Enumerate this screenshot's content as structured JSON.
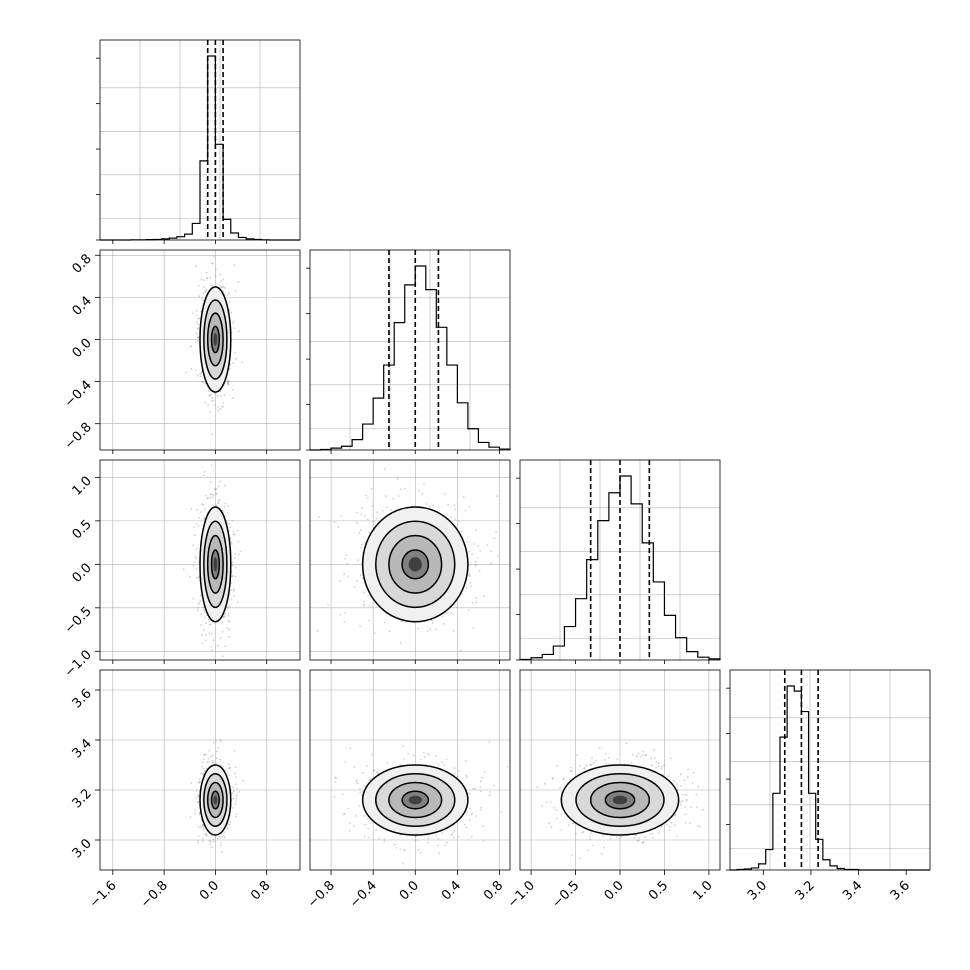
{
  "figure": {
    "type": "corner-plot",
    "color_main": "#000000",
    "color_grid": "#b0b0b0",
    "color_scatter": "#7f7f7f"
  },
  "chart_data": [
    {
      "type": "bar",
      "panel": "histogram-param-1",
      "edges": [
        -1.8,
        -1.68,
        -1.56,
        -1.44,
        -1.32,
        -1.2,
        -1.08,
        -0.96,
        -0.84,
        -0.72,
        -0.6,
        -0.48,
        -0.36,
        -0.24,
        -0.12,
        0,
        0.12,
        0.24,
        0.36,
        0.48,
        0.6,
        0.72,
        0.84,
        0.96,
        1.08,
        1.2,
        1.32
      ],
      "values": [
        0,
        0,
        0,
        0,
        1,
        1,
        2,
        3,
        6,
        10,
        18,
        32,
        90,
        430,
        1000,
        520,
        112,
        38,
        14,
        6,
        3,
        1,
        0,
        0,
        0,
        0
      ],
      "quantiles": [
        -0.12,
        0.0,
        0.12
      ],
      "xlim": [
        -1.8,
        1.32
      ],
      "xticks": [
        "−1.6",
        "−0.8",
        "0.0",
        "0.8"
      ]
    },
    {
      "type": "bar",
      "panel": "histogram-param-2",
      "edges": [
        -1.0,
        -0.9,
        -0.8,
        -0.7,
        -0.6,
        -0.5,
        -0.4,
        -0.3,
        -0.2,
        -0.1,
        0.0,
        0.1,
        0.2,
        0.3,
        0.4,
        0.5,
        0.6,
        0.7,
        0.8,
        0.9
      ],
      "values": [
        0,
        1,
        4,
        8,
        22,
        55,
        110,
        180,
        270,
        350,
        390,
        340,
        260,
        180,
        100,
        45,
        16,
        6,
        2
      ],
      "quantiles": [
        -0.25,
        0.0,
        0.22
      ],
      "yticks": [
        "0.8",
        "0.4",
        "0.0",
        "−0.4",
        "−0.8"
      ],
      "xticks": [
        "−0.8",
        "−0.4",
        "0.0",
        "0.4",
        "0.8"
      ]
    },
    {
      "type": "bar",
      "panel": "histogram-param-3",
      "edges": [
        -1.125,
        -1.0,
        -0.875,
        -0.75,
        -0.625,
        -0.5,
        -0.375,
        -0.25,
        -0.125,
        0.0,
        0.125,
        0.25,
        0.375,
        0.5,
        0.625,
        0.75,
        0.875,
        1.0,
        1.125
      ],
      "values": [
        1,
        4,
        10,
        25,
        60,
        110,
        180,
        250,
        300,
        330,
        280,
        210,
        140,
        80,
        40,
        15,
        5,
        2
      ],
      "quantiles": [
        -0.33,
        0.0,
        0.33
      ],
      "yticks": [
        "1.0",
        "0.5",
        "0.0",
        "−0.5",
        "−1.0"
      ],
      "xticks": [
        "−1.0",
        "−0.5",
        "0.0",
        "0.5",
        "1.0"
      ]
    },
    {
      "type": "bar",
      "panel": "histogram-param-4",
      "edges": [
        2.86,
        2.89,
        2.92,
        2.95,
        2.98,
        3.01,
        3.04,
        3.07,
        3.1,
        3.13,
        3.16,
        3.19,
        3.22,
        3.25,
        3.28,
        3.31,
        3.34,
        3.37,
        3.4,
        3.43,
        3.46,
        3.49,
        3.52,
        3.55,
        3.58,
        3.61,
        3.64,
        3.67,
        3.7
      ],
      "values": [
        0,
        1,
        2,
        4,
        12,
        40,
        150,
        260,
        360,
        350,
        310,
        150,
        60,
        20,
        8,
        3,
        1,
        1,
        0,
        0,
        0,
        0,
        0,
        0,
        0,
        0,
        0,
        0
      ],
      "quantiles": [
        3.09,
        3.16,
        3.23
      ],
      "yticks": [
        "3.6",
        "3.4",
        "3.2",
        "3.0"
      ],
      "xticks": [
        "3.0",
        "3.2",
        "3.4",
        "3.6"
      ]
    },
    {
      "type": "scatter",
      "panel": "hist2d-2-vs-1",
      "sx": 0.12,
      "sy": 0.25,
      "my": 0.0
    },
    {
      "type": "scatter",
      "panel": "hist2d-3-vs-1",
      "sx": 0.12,
      "sy": 0.33,
      "my": 0.0
    },
    {
      "type": "scatter",
      "panel": "hist2d-3-vs-2",
      "sx": 0.25,
      "sy": 0.33,
      "my": 0.0
    },
    {
      "type": "scatter",
      "panel": "hist2d-4-vs-1",
      "sx": 0.12,
      "sy": 0.07,
      "my": 3.16
    },
    {
      "type": "scatter",
      "panel": "hist2d-4-vs-2",
      "sx": 0.25,
      "sy": 0.07,
      "my": 3.16
    },
    {
      "type": "scatter",
      "panel": "hist2d-4-vs-3",
      "sx": 0.33,
      "sy": 0.07,
      "my": 3.16
    }
  ]
}
